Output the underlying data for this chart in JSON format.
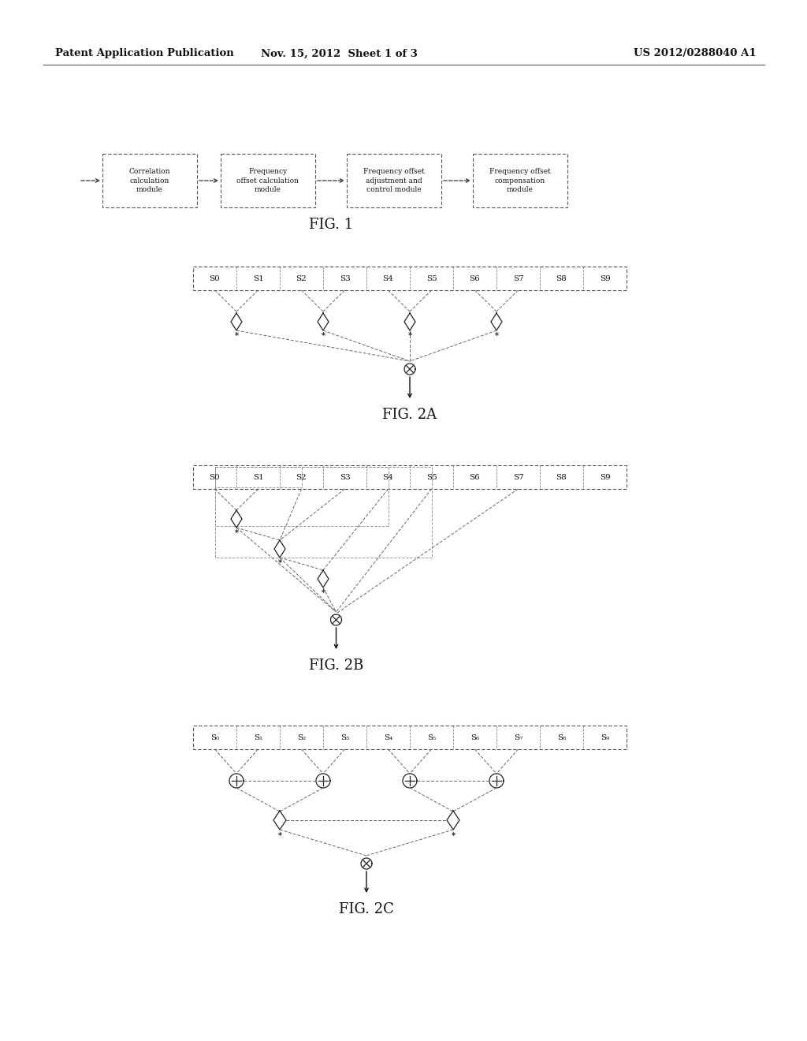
{
  "bg_color": "#ffffff",
  "header_left": "Patent Application Publication",
  "header_mid": "Nov. 15, 2012  Sheet 1 of 3",
  "header_right": "US 2012/0288040 A1",
  "s_labels_plain": [
    "S0",
    "S1",
    "S2",
    "S3",
    "S4",
    "S5",
    "S6",
    "S7",
    "S8",
    "S9"
  ],
  "s_labels_sub": [
    "S₀",
    "S₁",
    "S₂",
    "S₃",
    "S₄",
    "S₅",
    "S₆",
    "S₇",
    "S₈",
    "S₉"
  ]
}
